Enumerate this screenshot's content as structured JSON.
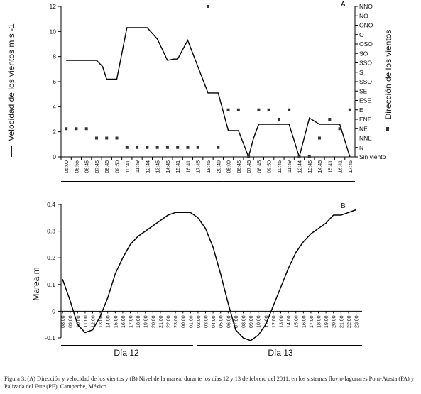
{
  "chart_data": [
    {
      "panel": "A",
      "type": "line",
      "ylabel": "Velocidad de los vientos m s -1",
      "y2label": "Dirección de los vientos",
      "ylim": [
        0,
        12
      ],
      "yticks": [
        "0",
        "2",
        "4",
        "6",
        "8",
        "10",
        "12"
      ],
      "categories": [
        "05:00",
        "05:55",
        "06:45",
        "07:45",
        "08:45",
        "09:50",
        "10:41",
        "11:49",
        "12:44",
        "13:45",
        "14:45",
        "15:41",
        "16:41",
        "17:45",
        "18:45",
        "20:49",
        "05:00",
        "06:45",
        "07:45",
        "08:45",
        "09:50",
        "10:45",
        "11:49",
        "12:44",
        "13:45",
        "14:45",
        "15:41",
        "16:41",
        "17:45"
      ],
      "direction_labels": [
        "Sin viento",
        "N",
        "NNE",
        "NE",
        "ENE",
        "E",
        "ESE",
        "SE",
        "SSO",
        "S",
        "SSO",
        "SO",
        "OSO",
        "O",
        "ONO",
        "NO",
        "NNO"
      ],
      "series": [
        {
          "kind": "speed",
          "x": [
            0,
            1,
            2,
            3,
            3.6,
            4,
            5,
            6,
            7,
            8,
            9,
            10,
            10.6,
            11,
            12,
            13,
            14,
            15,
            16,
            17,
            18,
            18.5,
            19,
            20,
            21,
            22,
            23,
            24,
            25,
            26,
            27,
            28
          ],
          "values": [
            7.7,
            7.7,
            7.7,
            7.7,
            7.2,
            6.2,
            6.2,
            10.3,
            10.3,
            10.3,
            9.4,
            7.7,
            7.8,
            7.8,
            9.3,
            7.2,
            5.1,
            5.1,
            2.1,
            2.1,
            0,
            1.5,
            2.6,
            2.6,
            2.6,
            2.6,
            0,
            3.1,
            2.6,
            2.6,
            2.6,
            0
          ]
        },
        {
          "kind": "direction",
          "x": [
            0,
            1,
            2,
            3,
            4,
            5,
            6,
            7,
            8,
            9,
            10,
            11,
            12,
            13,
            14,
            15,
            16,
            17,
            18,
            19,
            20,
            21,
            22,
            23,
            24,
            25,
            26,
            27,
            28
          ],
          "values": [
            3,
            3,
            3,
            2,
            2,
            2,
            1,
            1,
            1,
            1,
            1,
            1,
            1,
            1,
            16,
            1,
            5,
            5,
            0,
            5,
            5,
            4,
            5,
            0,
            0,
            2,
            4,
            3,
            5
          ]
        }
      ]
    },
    {
      "panel": "B",
      "type": "line",
      "ylabel": "Marea  m",
      "ylim": [
        -0.1,
        0.4
      ],
      "yticks": [
        "-0.1",
        "0",
        "0.1",
        "0.2",
        "0.3",
        "0.4"
      ],
      "categories": [
        "08:00",
        "09:00",
        "10:00",
        "11:00",
        "12:00",
        "13:00",
        "14:00",
        "15:00",
        "16:00",
        "17:00",
        "18:00",
        "19:00",
        "20:00",
        "21:00",
        "22:00",
        "23:00",
        "00:00",
        "01:00",
        "02:00",
        "03:00",
        "04:00",
        "05:00",
        "06:00",
        "07:00",
        "08:00",
        "09:00",
        "10:00",
        "11:00",
        "12:00",
        "13:00",
        "14:00",
        "15:00",
        "16:00",
        "17:00",
        "18:00",
        "19:00",
        "20:00",
        "21:00",
        "22:00",
        "23:00"
      ],
      "values": [
        0.12,
        0.04,
        -0.05,
        -0.08,
        -0.07,
        -0.02,
        0.05,
        0.14,
        0.2,
        0.25,
        0.28,
        0.3,
        0.32,
        0.34,
        0.36,
        0.37,
        0.37,
        0.37,
        0.35,
        0.31,
        0.24,
        0.14,
        0.03,
        -0.07,
        -0.1,
        -0.11,
        -0.09,
        -0.05,
        0.02,
        0.09,
        0.16,
        0.22,
        0.26,
        0.29,
        0.31,
        0.33,
        0.36,
        0.36,
        0.37,
        0.38
      ],
      "days": [
        "Día 12",
        "Día 13"
      ]
    }
  ],
  "caption": "Figura 3. (A) Dirección y velocidad de los vientos y (B) Nivel de la marea, durante los días 12 y 13 de febrero del 2011, en los sistemas fluvio-lagunares Pom-Atasta (PA) y Palizada del Este (PE), Campeche, México."
}
